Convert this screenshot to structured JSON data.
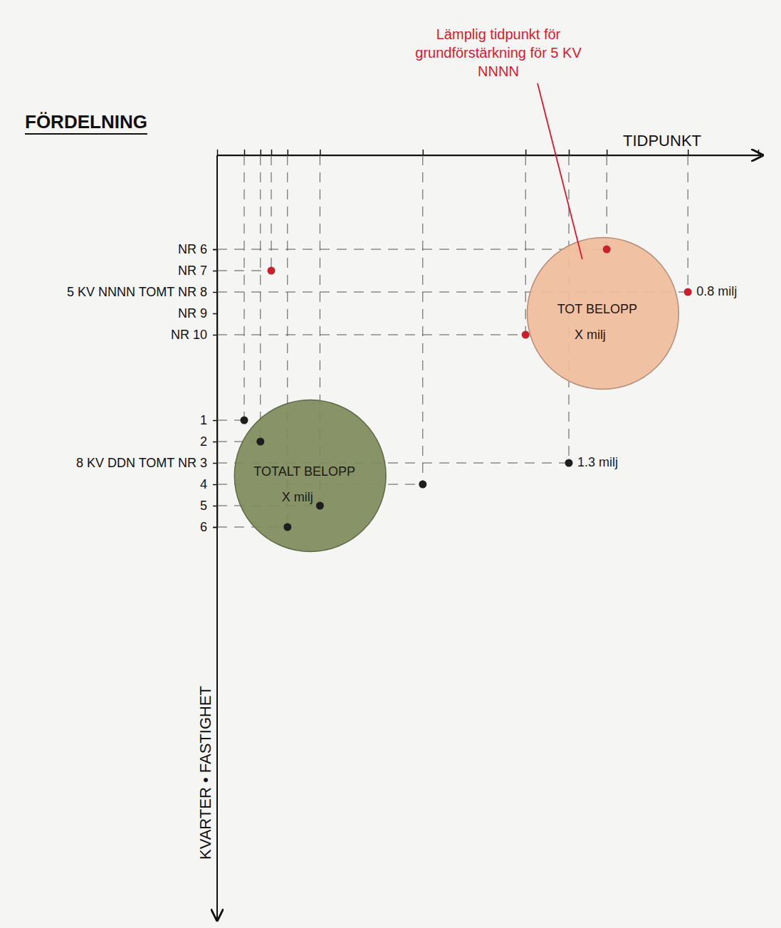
{
  "chart_data": {
    "type": "scatter",
    "title": "FÖRDELNING",
    "x_label": "TIDPUNKT",
    "y_label": "KVARTER • FASTIGHET",
    "categories": [
      "NR 6",
      "NR 7",
      "5 KV NNNN TOMT NR 8",
      "NR 9",
      "NR 10",
      null,
      null,
      null,
      "1",
      "2",
      "8 KV DDN TOMT NR 3",
      "4",
      "5",
      "6"
    ],
    "xlim": [
      0,
      100
    ],
    "xticks": [
      5,
      8,
      10,
      13,
      19,
      38,
      57,
      65,
      72,
      87
    ],
    "tick_labels": "y",
    "grid": true,
    "series": [
      {
        "color": "#c8202c",
        "x": [
          10,
          72,
          87,
          57
        ],
        "y": [
          "NR 7",
          "NR 6",
          "5 KV NNNN TOMT NR 8",
          "NR 10"
        ],
        "labels": [
          null,
          null,
          "0.8 milj",
          null
        ]
      },
      {
        "color": "#1e1e1e",
        "x": [
          5,
          8,
          65,
          38,
          19,
          13
        ],
        "y": [
          "1",
          "2",
          "8 KV DDN TOMT NR 3",
          "4",
          "5",
          "6"
        ],
        "labels": [
          null,
          null,
          "1.3 milj",
          null,
          null,
          null
        ]
      }
    ],
    "bubbles": [
      {
        "x": 71.3,
        "y": 3.0,
        "size": 14,
        "color": "#f0bc9c",
        "label": "TOT BELOPP",
        "value_label": "X milj"
      },
      {
        "x": 17.2,
        "y": 10.6,
        "size": 14,
        "color": "#7f8c5c",
        "label": "TOTALT BELOPP",
        "value_label": "X milj"
      }
    ],
    "annotations": [
      {
        "text": "Lämplig tidpunkt för grundförstärkning för 5 KV NNNN",
        "color": "#d81a2e"
      }
    ]
  }
}
